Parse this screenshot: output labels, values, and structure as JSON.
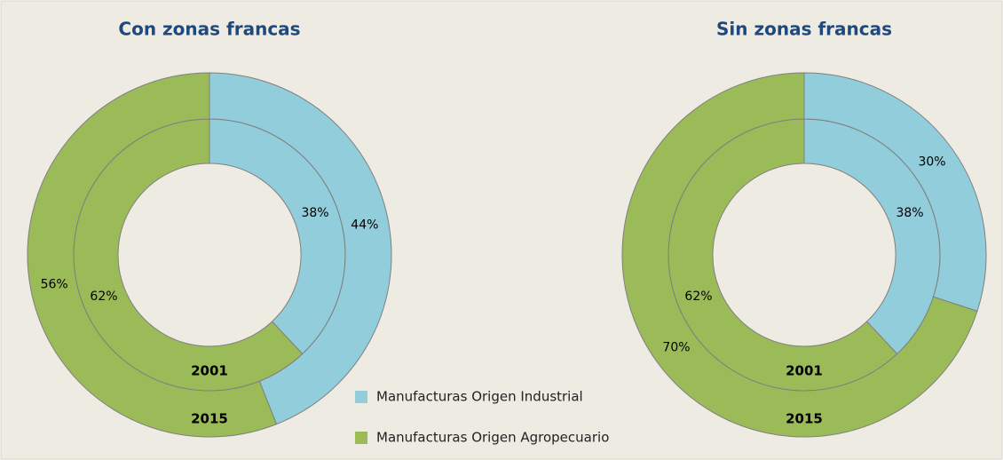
{
  "chart_data": [
    {
      "type": "donut",
      "title": "Con zonas francas",
      "rings": [
        {
          "name": "2001",
          "values": [
            38,
            62
          ],
          "value_labels": [
            "38%",
            "62%"
          ]
        },
        {
          "name": "2015",
          "values": [
            44,
            56
          ],
          "value_labels": [
            "44%",
            "56%"
          ]
        }
      ]
    },
    {
      "type": "donut",
      "title": "Sin zonas francas",
      "rings": [
        {
          "name": "2001",
          "values": [
            38,
            62
          ],
          "value_labels": [
            "38%",
            "62%"
          ]
        },
        {
          "name": "2015",
          "values": [
            30,
            70
          ],
          "value_labels": [
            "30%",
            "70%"
          ]
        }
      ]
    }
  ],
  "legend": {
    "items": [
      {
        "name": "Manufacturas Origen Industrial",
        "color": "#92cddc"
      },
      {
        "name": "Manufacturas Origen Agropecuario",
        "color": "#9bbb59"
      }
    ]
  }
}
